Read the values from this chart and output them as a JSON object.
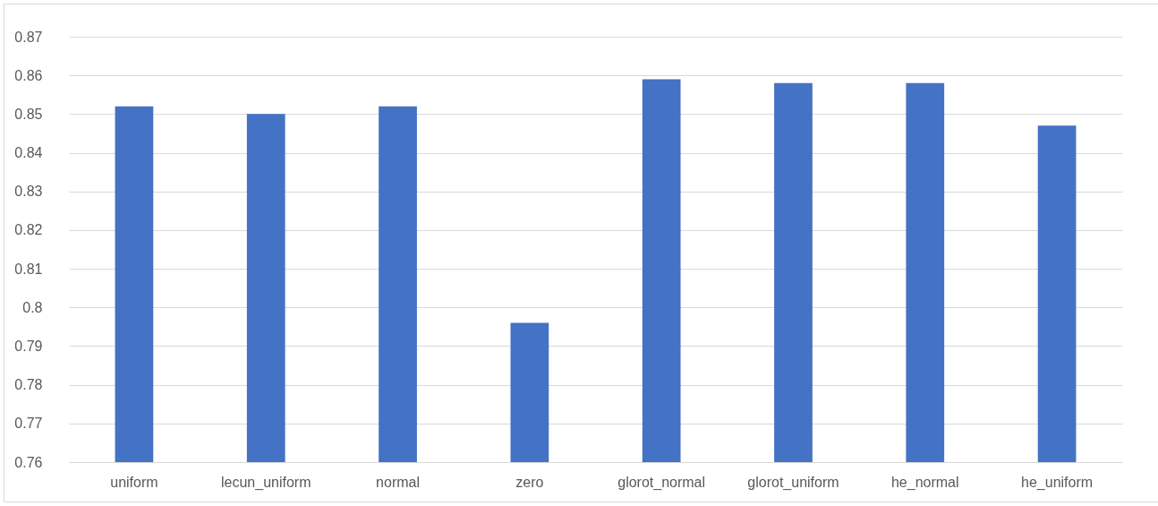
{
  "chart_data": {
    "type": "bar",
    "categories": [
      "uniform",
      "lecun_uniform",
      "normal",
      "zero",
      "glorot_normal",
      "glorot_uniform",
      "he_normal",
      "he_uniform"
    ],
    "values": [
      0.852,
      0.85,
      0.852,
      0.796,
      0.859,
      0.858,
      0.858,
      0.847
    ],
    "color": "#4472c4",
    "ylim": [
      0.76,
      0.87
    ],
    "yticks": [
      0.76,
      0.77,
      0.78,
      0.79,
      0.8,
      0.81,
      0.82,
      0.83,
      0.84,
      0.85,
      0.86,
      0.87
    ],
    "grid": "y"
  }
}
